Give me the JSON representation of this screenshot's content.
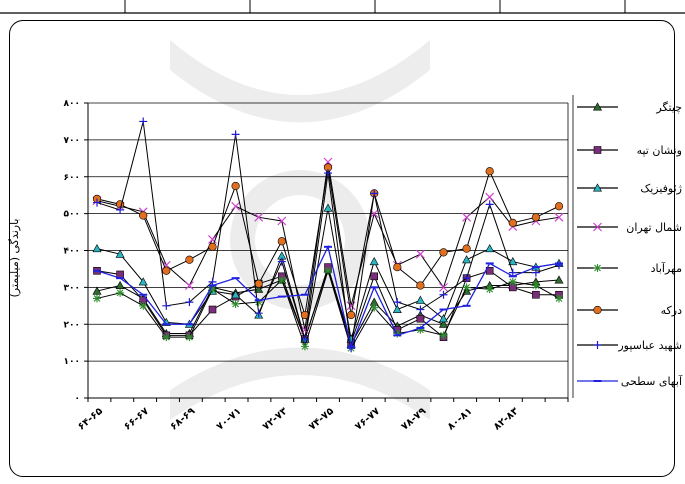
{
  "chart_data": {
    "type": "line",
    "title": "",
    "xlabel": "",
    "ylabel": "بارندگی (میلیمتر)",
    "ylim": [
      0,
      800
    ],
    "yticks": [
      "۰",
      "۱۰۰",
      "۲۰۰",
      "۳۰۰",
      "۴۰۰",
      "۵۰۰",
      "۶۰۰",
      "۷۰۰",
      "۸۰۰"
    ],
    "grid": "horizontal",
    "legend_position": "right",
    "x_tick_labels": [
      "۶۴-۶۵",
      "۶۶-۶۷",
      "۶۸-۶۹",
      "۷۰-۷۱",
      "۷۲-۷۳",
      "۷۴-۷۵",
      "۷۶-۷۷",
      "۷۸-۷۹",
      "۸۰-۸۱",
      "۸۲-۸۳"
    ],
    "x_tick_positions": [
      0,
      2,
      4,
      6,
      8,
      10,
      12,
      14,
      16,
      18
    ],
    "n_points": 21,
    "series": [
      {
        "name": "چیتگر",
        "color": "#2E6B2E",
        "marker": "triangle",
        "values": [
          290,
          305,
          270,
          175,
          175,
          300,
          285,
          295,
          320,
          160,
          350,
          145,
          260,
          195,
          225,
          200,
          290,
          305,
          305,
          315,
          320
        ]
      },
      {
        "name": "ونشان تپه",
        "color": "#7A2E7A",
        "marker": "square",
        "values": [
          345,
          335,
          265,
          170,
          170,
          240,
          275,
          310,
          330,
          160,
          355,
          150,
          330,
          185,
          215,
          165,
          325,
          345,
          300,
          280,
          280
        ]
      },
      {
        "name": "ژئوفیزیک",
        "color": "#2AB5C0",
        "marker": "triangle",
        "values": [
          405,
          390,
          315,
          205,
          200,
          290,
          280,
          225,
          385,
          160,
          515,
          160,
          370,
          240,
          265,
          215,
          375,
          405,
          370,
          355,
          365
        ]
      },
      {
        "name": "شمال تهران",
        "color": "#D040D0",
        "marker": "x",
        "values": [
          535,
          520,
          505,
          360,
          305,
          430,
          520,
          490,
          480,
          185,
          640,
          250,
          500,
          360,
          390,
          300,
          490,
          545,
          465,
          480,
          490
        ]
      },
      {
        "name": "مهرآباد",
        "color": "#2E8B2E",
        "marker": "asterisk",
        "values": [
          270,
          285,
          250,
          165,
          165,
          295,
          255,
          260,
          320,
          140,
          345,
          135,
          245,
          175,
          185,
          170,
          300,
          295,
          315,
          305,
          270
        ]
      },
      {
        "name": "درکه",
        "color": "#E07020",
        "marker": "circle",
        "values": [
          540,
          525,
          495,
          345,
          375,
          410,
          575,
          310,
          425,
          225,
          625,
          225,
          555,
          355,
          305,
          395,
          405,
          615,
          475,
          490,
          520
        ]
      },
      {
        "name": "شهید عباسپور",
        "color": "#1E1ED0",
        "marker": "plus",
        "values": [
          530,
          510,
          750,
          250,
          260,
          315,
          715,
          230,
          370,
          160,
          610,
          135,
          555,
          260,
          240,
          280,
          325,
          525,
          340,
          340,
          360
        ]
      },
      {
        "name": "آبهای سطحی",
        "color": "#2020E0",
        "marker": "dash",
        "values": [
          345,
          325,
          280,
          200,
          200,
          305,
          325,
          265,
          275,
          280,
          410,
          140,
          300,
          170,
          190,
          240,
          250,
          365,
          330,
          355,
          365
        ]
      }
    ]
  }
}
